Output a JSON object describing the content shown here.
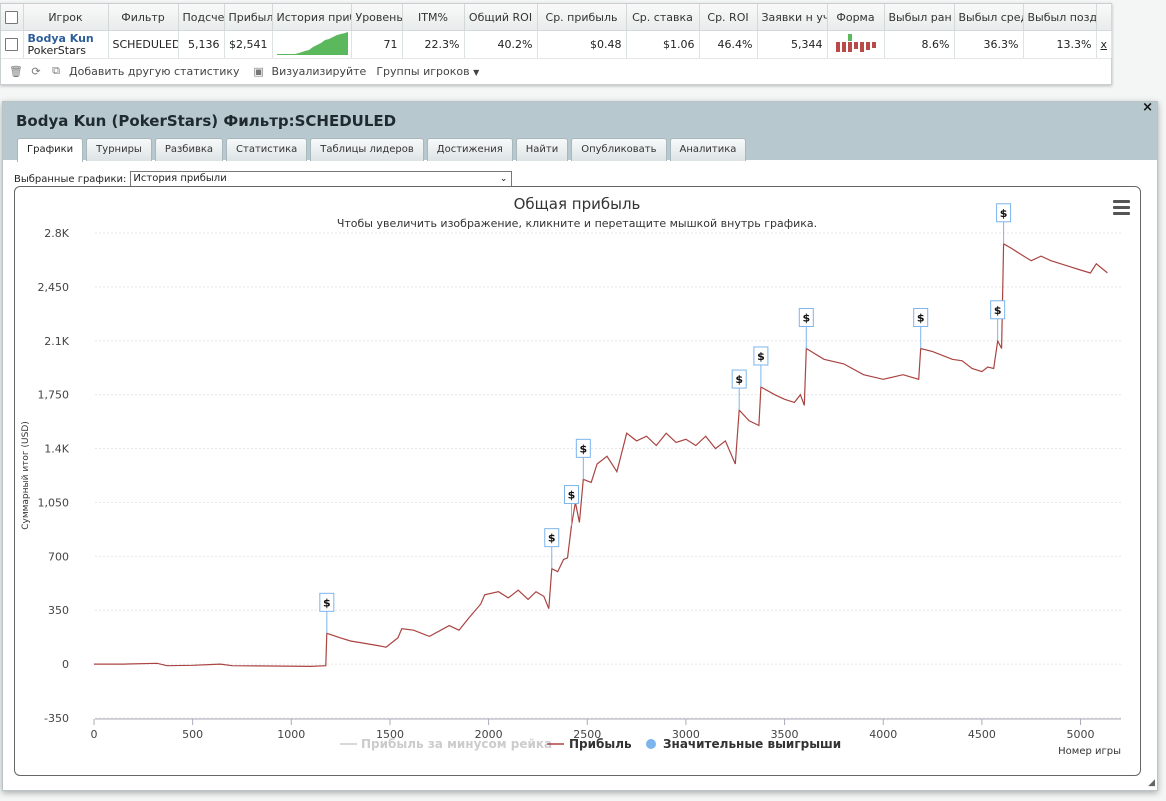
{
  "stats_table": {
    "headers": [
      "Игрок",
      "Фильтр",
      "Подсче",
      "Прибыл",
      "История приб",
      "Уровень",
      "ITM%",
      "Общий ROI",
      "Ср. прибыль",
      "Ср. ставка",
      "Ср. ROI",
      "Заявки н уч",
      "Форма",
      "Выбыл ран",
      "Выбыл сред",
      "Выбыл позд"
    ],
    "row": {
      "player_name": "Bodya Kun",
      "player_site": "PokerStars",
      "filter": "SCHEDULED",
      "count": "5,136",
      "profit": "$2,541",
      "level": "71",
      "itm": "22.3%",
      "total_roi": "40.2%",
      "avg_profit": "$0.48",
      "avg_stake": "$1.06",
      "avg_roi": "46.4%",
      "entries": "5,344",
      "out_early": "8.6%",
      "out_mid": "36.3%",
      "out_late": "13.3%",
      "remove": "x"
    },
    "toolbar": {
      "add_stat": "Добавить другую статистику",
      "visualize": "Визуализируйте",
      "groups": "Группы игроков"
    }
  },
  "panel": {
    "title": "Bodya Kun (PokerStars) Фильтр:SCHEDULED",
    "close": "×",
    "tabs": [
      "Графики",
      "Турниры",
      "Разбивка",
      "Статистика",
      "Таблицы лидеров",
      "Достижения",
      "Найти",
      "Опубликовать",
      "Аналитика"
    ],
    "active_tab": "Графики",
    "selector_label": "Выбранные графики:",
    "selector_value": "История прибыли"
  },
  "chart_data": {
    "type": "line",
    "title": "Общая прибыль",
    "subtitle": "Чтобы увеличить изображение, кликните и перетащите мышкой внутрь графика.",
    "xlabel": "Номер игры",
    "ylabel": "Суммарный итог (USD)",
    "xlim": [
      0,
      5136
    ],
    "ylim": [
      -350,
      2800
    ],
    "x_ticks": [
      "0",
      "500",
      "1000",
      "1500",
      "2000",
      "2500",
      "3000",
      "3500",
      "4000",
      "4500",
      "5000"
    ],
    "y_ticks": [
      "-350",
      "0",
      "350",
      "700",
      "1,050",
      "1.4K",
      "1,750",
      "2.1K",
      "2,450",
      "2.8K"
    ],
    "y_tick_values": [
      -350,
      0,
      350,
      700,
      1050,
      1400,
      1750,
      2100,
      2450,
      2800
    ],
    "legend": [
      {
        "name": "Прибыль за минусом рейка",
        "color": "#cccccc",
        "disabled": true
      },
      {
        "name": "Прибыль",
        "color": "#a94442"
      },
      {
        "name": "Значительные выигрыши",
        "color": "#7cb5ec"
      }
    ],
    "legend_position": "bottom-center",
    "grid": true,
    "series": [
      {
        "name": "Прибыль",
        "color": "#a94442",
        "points": [
          [
            0,
            0
          ],
          [
            150,
            0
          ],
          [
            320,
            5
          ],
          [
            370,
            -10
          ],
          [
            500,
            -8
          ],
          [
            640,
            0
          ],
          [
            700,
            -10
          ],
          [
            900,
            -12
          ],
          [
            1100,
            -15
          ],
          [
            1175,
            -10
          ],
          [
            1180,
            200
          ],
          [
            1250,
            170
          ],
          [
            1300,
            150
          ],
          [
            1350,
            140
          ],
          [
            1440,
            120
          ],
          [
            1480,
            110
          ],
          [
            1540,
            170
          ],
          [
            1560,
            230
          ],
          [
            1620,
            220
          ],
          [
            1700,
            180
          ],
          [
            1800,
            250
          ],
          [
            1850,
            220
          ],
          [
            1900,
            300
          ],
          [
            1960,
            390
          ],
          [
            1980,
            450
          ],
          [
            2050,
            470
          ],
          [
            2100,
            430
          ],
          [
            2150,
            480
          ],
          [
            2200,
            420
          ],
          [
            2240,
            470
          ],
          [
            2280,
            440
          ],
          [
            2305,
            360
          ],
          [
            2320,
            620
          ],
          [
            2350,
            600
          ],
          [
            2380,
            680
          ],
          [
            2400,
            690
          ],
          [
            2420,
            900
          ],
          [
            2440,
            1050
          ],
          [
            2460,
            920
          ],
          [
            2480,
            1200
          ],
          [
            2520,
            1180
          ],
          [
            2550,
            1300
          ],
          [
            2600,
            1350
          ],
          [
            2650,
            1250
          ],
          [
            2700,
            1500
          ],
          [
            2750,
            1450
          ],
          [
            2800,
            1480
          ],
          [
            2850,
            1420
          ],
          [
            2900,
            1500
          ],
          [
            2950,
            1440
          ],
          [
            3000,
            1460
          ],
          [
            3050,
            1420
          ],
          [
            3100,
            1480
          ],
          [
            3150,
            1400
          ],
          [
            3200,
            1450
          ],
          [
            3250,
            1300
          ],
          [
            3270,
            1650
          ],
          [
            3320,
            1580
          ],
          [
            3370,
            1550
          ],
          [
            3380,
            1800
          ],
          [
            3450,
            1750
          ],
          [
            3500,
            1720
          ],
          [
            3550,
            1700
          ],
          [
            3580,
            1750
          ],
          [
            3600,
            1680
          ],
          [
            3610,
            2050
          ],
          [
            3700,
            1980
          ],
          [
            3800,
            1950
          ],
          [
            3900,
            1880
          ],
          [
            4000,
            1850
          ],
          [
            4100,
            1880
          ],
          [
            4180,
            1850
          ],
          [
            4190,
            2050
          ],
          [
            4250,
            2030
          ],
          [
            4350,
            1980
          ],
          [
            4400,
            1970
          ],
          [
            4450,
            1920
          ],
          [
            4500,
            1900
          ],
          [
            4530,
            1930
          ],
          [
            4560,
            1920
          ],
          [
            4580,
            2100
          ],
          [
            4600,
            2050
          ],
          [
            4610,
            2730
          ],
          [
            4650,
            2700
          ],
          [
            4700,
            2660
          ],
          [
            4750,
            2620
          ],
          [
            4800,
            2650
          ],
          [
            4850,
            2620
          ],
          [
            4900,
            2600
          ],
          [
            4950,
            2580
          ],
          [
            5000,
            2560
          ],
          [
            5050,
            2540
          ],
          [
            5080,
            2600
          ],
          [
            5136,
            2541
          ]
        ]
      }
    ],
    "big_wins": [
      {
        "x": 1180,
        "y": 200,
        "label": "$"
      },
      {
        "x": 2320,
        "y": 620,
        "label": "$"
      },
      {
        "x": 2420,
        "y": 900,
        "label": "$"
      },
      {
        "x": 2480,
        "y": 1200,
        "label": "$"
      },
      {
        "x": 3270,
        "y": 1650,
        "label": "$"
      },
      {
        "x": 3380,
        "y": 1800,
        "label": "$"
      },
      {
        "x": 3610,
        "y": 2050,
        "label": "$"
      },
      {
        "x": 4190,
        "y": 2050,
        "label": "$"
      },
      {
        "x": 4580,
        "y": 2100,
        "label": "$"
      },
      {
        "x": 4610,
        "y": 2730,
        "label": "$"
      }
    ]
  }
}
